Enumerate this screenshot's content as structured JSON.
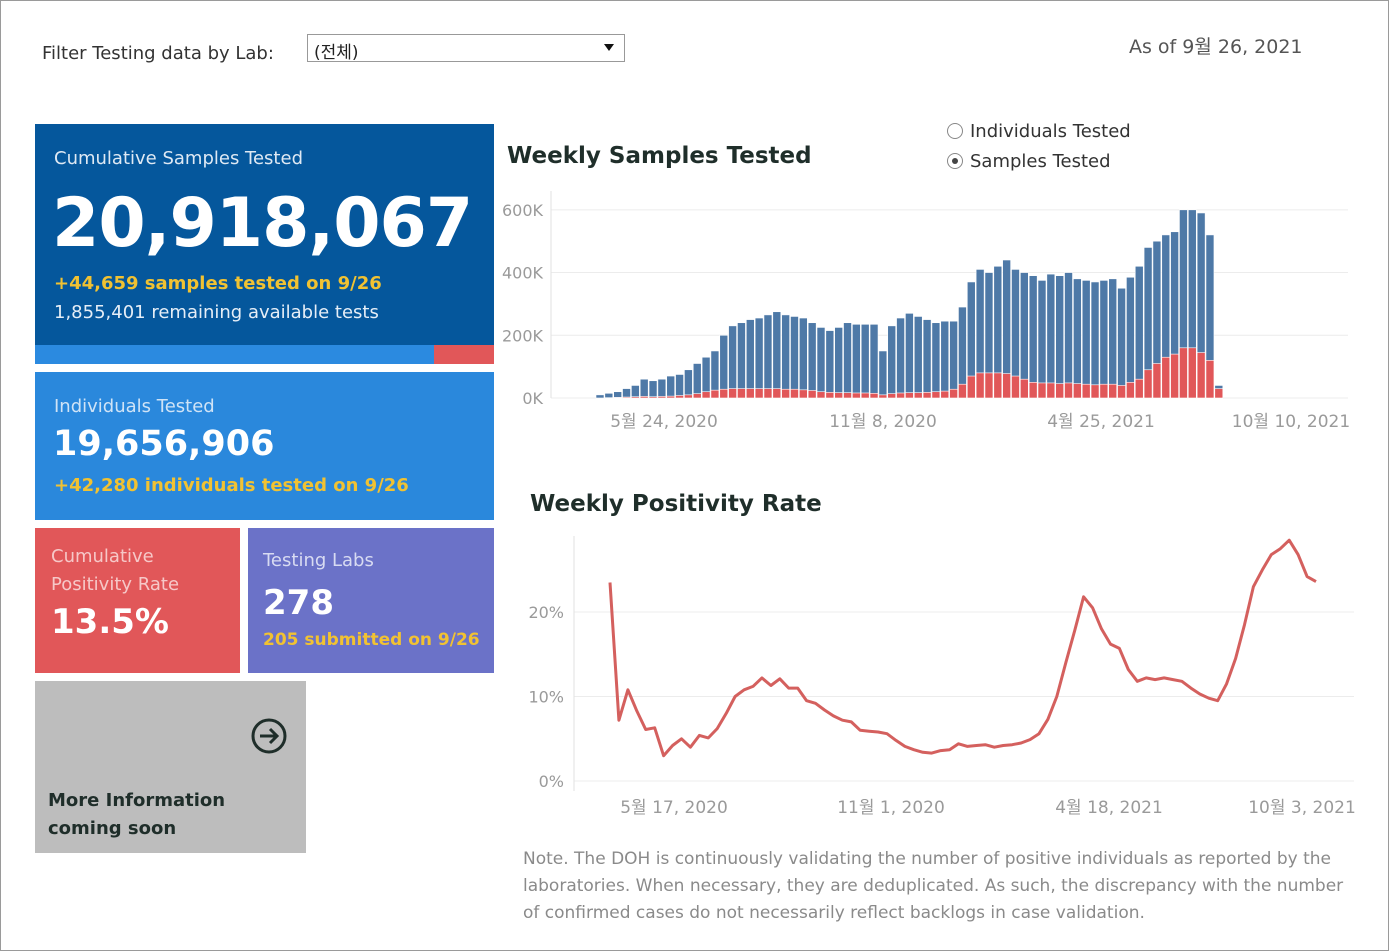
{
  "filter": {
    "label": "Filter Testing data by Lab:",
    "value": "(전체)"
  },
  "as_of": "As of 9월 26, 2021",
  "cumulative_samples": {
    "title": "Cumulative Samples Tested",
    "value": "20,918,067",
    "delta": "+44,659 samples tested on 9/26",
    "remaining": "1,855,401 remaining available tests",
    "used_fraction": 0.87
  },
  "individuals": {
    "title": "Individuals Tested",
    "value": "19,656,906",
    "delta": "+42,280  individuals  tested on 9/26"
  },
  "positivity": {
    "title": "Cumulative Positivity Rate",
    "value": "13.5%"
  },
  "labs": {
    "title": "Testing Labs",
    "value": "278",
    "delta": "205 submitted on 9/26"
  },
  "more_info": {
    "text": "More Information coming soon",
    "icon": "arrow-right-circle-icon"
  },
  "toggle": {
    "options": [
      "Individuals Tested",
      "Samples Tested"
    ],
    "selected": "Samples Tested"
  },
  "note": "Note. The DOH is continuously validating the number of positive individuals as reported by the laboratories. When necessary, they are deduplicated. As such, the discrepancy with the number of confirmed cases do not necessarily reflect backlogs in case validation.",
  "colors": {
    "blue": "#4e79a7",
    "red": "#e15759",
    "line": "#d4605e"
  },
  "chart_data": [
    {
      "type": "bar",
      "title": "Weekly Samples Tested",
      "x_tick_labels": [
        "5월 24, 2020",
        "11월 8, 2020",
        "4월 25, 2021",
        "10월 10, 2021"
      ],
      "y_tick_labels": [
        "0K",
        "200K",
        "400K",
        "600K"
      ],
      "ylim": [
        0,
        660000
      ],
      "series": [
        {
          "name": "samples",
          "values": [
            10000,
            15000,
            20000,
            30000,
            40000,
            60000,
            55000,
            60000,
            70000,
            75000,
            90000,
            110000,
            130000,
            150000,
            200000,
            230000,
            240000,
            250000,
            255000,
            265000,
            275000,
            265000,
            260000,
            255000,
            240000,
            225000,
            215000,
            225000,
            240000,
            235000,
            235000,
            235000,
            150000,
            230000,
            255000,
            270000,
            260000,
            250000,
            240000,
            245000,
            245000,
            290000,
            370000,
            410000,
            400000,
            420000,
            440000,
            410000,
            400000,
            390000,
            375000,
            395000,
            390000,
            400000,
            380000,
            375000,
            370000,
            375000,
            380000,
            350000,
            385000,
            420000,
            480000,
            500000,
            520000,
            530000,
            600000,
            600000,
            590000,
            520000,
            40000
          ]
        },
        {
          "name": "positives",
          "values": [
            0,
            1000,
            2000,
            3000,
            4000,
            5000,
            4000,
            5000,
            6000,
            8000,
            10000,
            14000,
            20000,
            25000,
            28000,
            30000,
            30000,
            30000,
            30000,
            30000,
            30000,
            28000,
            28000,
            26000,
            24000,
            20000,
            18000,
            17000,
            17000,
            16000,
            16000,
            15000,
            10000,
            14000,
            16000,
            17000,
            17000,
            18000,
            20000,
            22000,
            28000,
            44000,
            70000,
            80000,
            80000,
            80000,
            78000,
            70000,
            60000,
            50000,
            48000,
            48000,
            46000,
            48000,
            46000,
            44000,
            42000,
            44000,
            44000,
            40000,
            50000,
            60000,
            90000,
            110000,
            130000,
            140000,
            160000,
            160000,
            145000,
            120000,
            30000
          ]
        }
      ]
    },
    {
      "type": "line",
      "title": "Weekly Positivity Rate",
      "x_tick_labels": [
        "5월 17, 2020",
        "11월 1, 2020",
        "4월 18, 2021",
        "10월 3, 2021"
      ],
      "y_tick_labels": [
        "0%",
        "10%",
        "20%"
      ],
      "ylim": [
        0,
        29
      ],
      "series": [
        {
          "name": "positivity",
          "values": [
            23.5,
            7.2,
            10.8,
            8.3,
            6.1,
            6.3,
            3.0,
            4.2,
            5.0,
            4.0,
            5.4,
            5.1,
            6.2,
            8.0,
            10.0,
            10.8,
            11.2,
            12.2,
            11.3,
            12.1,
            11.0,
            11.0,
            9.5,
            9.2,
            8.4,
            7.7,
            7.2,
            7.0,
            6.0,
            5.9,
            5.8,
            5.6,
            4.8,
            4.1,
            3.7,
            3.4,
            3.3,
            3.6,
            3.7,
            4.4,
            4.1,
            4.2,
            4.3,
            4.0,
            4.2,
            4.3,
            4.5,
            4.9,
            5.6,
            7.3,
            10.0,
            14.0,
            17.8,
            21.8,
            20.5,
            18.0,
            16.2,
            15.7,
            13.2,
            11.8,
            12.2,
            12.0,
            12.2,
            12.0,
            11.8,
            11.0,
            10.3,
            9.8,
            9.5,
            11.5,
            14.5,
            18.5,
            23.0,
            25.0,
            26.8,
            27.5,
            28.5,
            26.8,
            24.2,
            23.6
          ]
        }
      ]
    }
  ]
}
